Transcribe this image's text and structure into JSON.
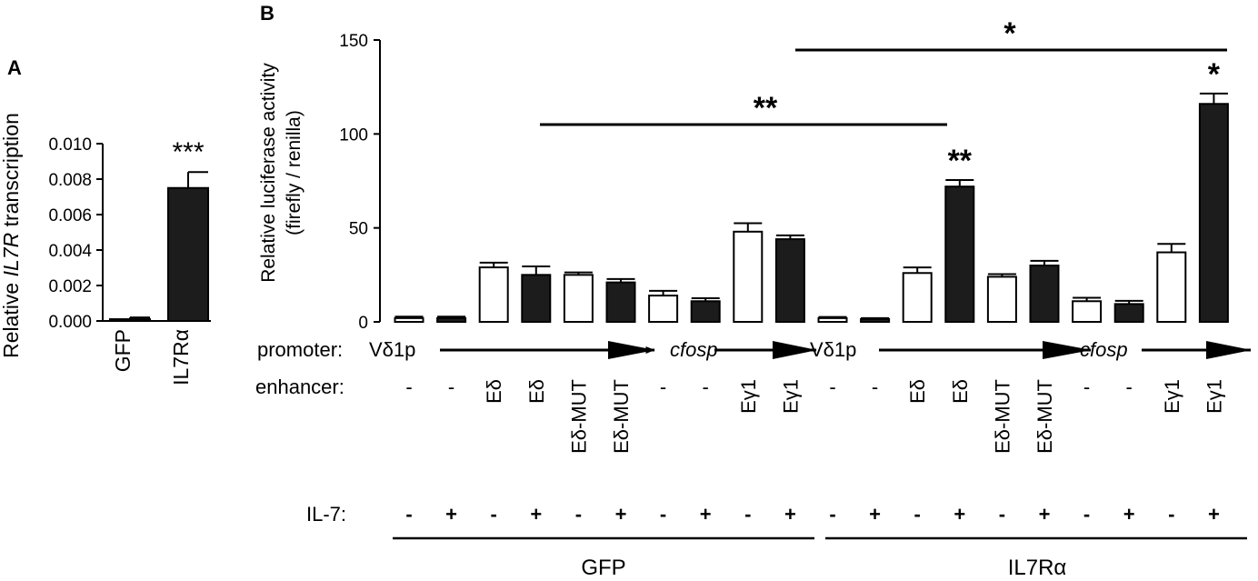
{
  "panel_a": {
    "letter": "A",
    "ylabel_prefix": "Relative ",
    "ylabel_gene": "IL7R",
    "ylabel_suffix": " transcription",
    "yticks": [
      "0.000",
      "0.002",
      "0.004",
      "0.006",
      "0.008",
      "0.010"
    ],
    "significance": "***"
  },
  "panel_b": {
    "letter": "B",
    "ylabel_line1": "Relative luciferase activity",
    "ylabel_line2": "(firefly / renilla)",
    "yticks": [
      "0",
      "50",
      "100",
      "150"
    ],
    "row_labels": {
      "promoter": "promoter:",
      "enhancer": "enhancer:",
      "il7": "IL-7:"
    },
    "promoter_segments": [
      {
        "label": "Vδ1p",
        "italic": false
      },
      {
        "label": "cfosp",
        "italic": true
      },
      {
        "label": "Vδ1p",
        "italic": false
      },
      {
        "label": "cfosp",
        "italic": true
      }
    ],
    "enhancers": [
      "-",
      "-",
      "Eδ",
      "Eδ",
      "Eδ-MUT",
      "Eδ-MUT",
      "-",
      "-",
      "Eγ1",
      "Eγ1",
      "-",
      "-",
      "Eδ",
      "Eδ",
      "Eδ-MUT",
      "Eδ-MUT",
      "-",
      "-",
      "Eγ1",
      "Eγ1"
    ],
    "il7": [
      "-",
      "+",
      "-",
      "+",
      "-",
      "+",
      "-",
      "+",
      "-",
      "+",
      "-",
      "+",
      "-",
      "+",
      "-",
      "+",
      "-",
      "+",
      "-",
      "+"
    ],
    "groups": [
      "GFP",
      "IL7Rα"
    ],
    "bar_stars": [
      "**",
      "*"
    ],
    "brackets": [
      "**",
      "*"
    ]
  },
  "chart_data": [
    {
      "type": "bar",
      "categories": [
        "GFP",
        "IL7Rα"
      ],
      "values": [
        0.0001,
        0.0075
      ],
      "errors": [
        0.0001,
        0.0009
      ],
      "fills": [
        "#ffffff",
        "#1c1c1c"
      ],
      "ylabel": "Relative IL7R transcription",
      "ylim": [
        0,
        0.01
      ],
      "yticks": [
        0,
        0.002,
        0.004,
        0.006,
        0.008,
        0.01
      ],
      "annotations": [
        {
          "category": "IL7Rα",
          "text": "***"
        }
      ]
    },
    {
      "type": "bar",
      "ylabel": "Relative luciferase activity (firefly / renilla)",
      "ylim": [
        0,
        150
      ],
      "yticks": [
        0,
        50,
        100,
        150
      ],
      "values": [
        2,
        2,
        29,
        25,
        25,
        21,
        14,
        11,
        48,
        44,
        2,
        1.5,
        26,
        72,
        24,
        30,
        11,
        9.5,
        37,
        116
      ],
      "errors": [
        0.8,
        0.8,
        2.5,
        4.5,
        1.3,
        1.8,
        2.5,
        1.6,
        4.5,
        2,
        0.6,
        0.5,
        3,
        3.5,
        1.4,
        2.5,
        1.8,
        1.7,
        4.5,
        5.5
      ],
      "fills": [
        "#ffffff",
        "#1c1c1c",
        "#ffffff",
        "#1c1c1c",
        "#ffffff",
        "#1c1c1c",
        "#ffffff",
        "#1c1c1c",
        "#ffffff",
        "#1c1c1c",
        "#ffffff",
        "#1c1c1c",
        "#ffffff",
        "#1c1c1c",
        "#ffffff",
        "#1c1c1c",
        "#ffffff",
        "#1c1c1c",
        "#ffffff",
        "#1c1c1c"
      ],
      "groups": [
        {
          "name": "GFP",
          "bars": [
            1,
            10
          ]
        },
        {
          "name": "IL7Rα",
          "bars": [
            11,
            20
          ]
        }
      ],
      "annotations": [
        {
          "bar": 14,
          "text": "**"
        },
        {
          "bar": 20,
          "text": "*"
        }
      ],
      "comparisons": [
        {
          "from": 4,
          "to": 14,
          "text": "**"
        },
        {
          "from": 10,
          "to": 20,
          "text": "*"
        }
      ]
    }
  ]
}
